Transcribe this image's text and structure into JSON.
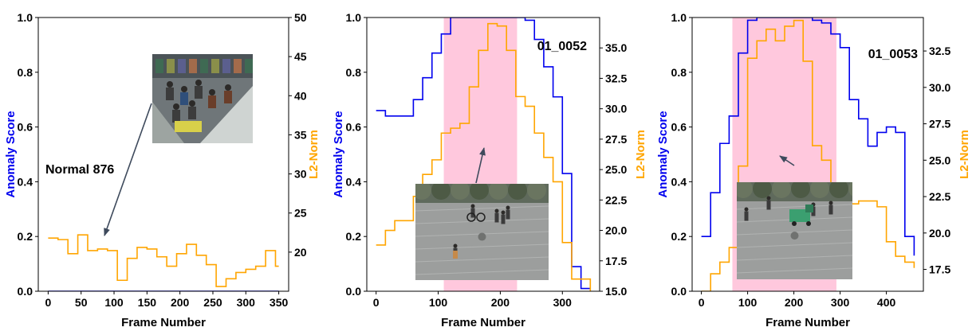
{
  "chart_data": [
    {
      "type": "line",
      "annotation": "Normal 876",
      "xlabel": "Frame Number",
      "ylabel": "Anomaly Score",
      "y2label": "L2-Norm",
      "xlim": [
        -15,
        365
      ],
      "ylim": [
        0,
        1.0
      ],
      "y2lim": [
        15,
        50
      ],
      "xticks": [
        0,
        50,
        100,
        150,
        200,
        250,
        300,
        350
      ],
      "yticks": [
        0.0,
        0.2,
        0.4,
        0.6,
        0.8,
        1.0
      ],
      "y2ticks": [
        20,
        25,
        30,
        35,
        40,
        45,
        50
      ],
      "ytick_labels": [
        "0.0",
        "0.2",
        "0.4",
        "0.6",
        "0.8",
        "1.0"
      ],
      "y2tick_labels": [
        "20",
        "25",
        "30",
        "35",
        "40",
        "45",
        "50"
      ],
      "shade": null,
      "thumbnail": "store-surveillance",
      "series": [
        {
          "axis": "left",
          "color": "#0000ee",
          "x": [
            0,
            350
          ],
          "values": [
            0.0,
            0.0
          ]
        },
        {
          "axis": "right",
          "color": "#ffa500",
          "x": [
            0,
            15,
            30,
            45,
            60,
            75,
            90,
            105,
            120,
            135,
            150,
            165,
            180,
            195,
            210,
            225,
            240,
            255,
            270,
            285,
            300,
            315,
            330,
            345,
            350
          ],
          "values": [
            21.8,
            21.6,
            19.8,
            22.2,
            20.2,
            20.4,
            20.2,
            16.4,
            19.2,
            20.6,
            20.4,
            19.4,
            18.2,
            19.8,
            21.0,
            19.6,
            18.4,
            15.6,
            16.6,
            17.4,
            17.8,
            18.2,
            20.2,
            18.2,
            18.2
          ]
        }
      ]
    },
    {
      "type": "line",
      "annotation": "01_0052",
      "xlabel": "Frame Number",
      "ylabel": "Anomaly Score",
      "y2label": "L2-Norm",
      "xlim": [
        -15,
        360
      ],
      "ylim": [
        0,
        1.0
      ],
      "y2lim": [
        15,
        37.5
      ],
      "xticks": [
        0,
        100,
        200,
        300
      ],
      "yticks": [
        0.0,
        0.2,
        0.4,
        0.6,
        0.8,
        1.0
      ],
      "y2ticks": [
        15,
        17.5,
        20,
        22.5,
        25,
        27.5,
        30,
        32.5,
        35
      ],
      "ytick_labels": [
        "0.0",
        "0.2",
        "0.4",
        "0.6",
        "0.8",
        "1.0"
      ],
      "y2tick_labels": [
        "15.0",
        "17.5",
        "20.0",
        "22.5",
        "25.0",
        "27.5",
        "30.0",
        "32.5",
        "35.0"
      ],
      "shade": [
        109,
        227
      ],
      "thumbnail": "plaza-pedestrians",
      "series": [
        {
          "axis": "left",
          "color": "#0000ee",
          "x": [
            0,
            15,
            30,
            45,
            60,
            75,
            90,
            105,
            120,
            135,
            150,
            165,
            180,
            195,
            210,
            225,
            240,
            255,
            270,
            285,
            300,
            315,
            330,
            345
          ],
          "values": [
            0.66,
            0.64,
            0.64,
            0.64,
            0.7,
            0.78,
            0.87,
            0.94,
            1.0,
            1.0,
            1.0,
            1.0,
            1.0,
            1.0,
            1.0,
            1.0,
            0.99,
            0.92,
            0.82,
            0.71,
            0.43,
            0.09,
            0.01,
            0.01
          ]
        },
        {
          "axis": "right",
          "color": "#ffa500",
          "x": [
            0,
            15,
            30,
            45,
            60,
            75,
            90,
            105,
            120,
            135,
            150,
            165,
            180,
            195,
            210,
            225,
            240,
            255,
            270,
            285,
            300,
            315,
            330,
            345
          ],
          "values": [
            18.8,
            20.0,
            20.8,
            20.8,
            22.8,
            24.6,
            25.8,
            28.0,
            28.4,
            28.8,
            31.8,
            34.8,
            37.0,
            36.8,
            34.8,
            31.0,
            30.2,
            28.0,
            26.0,
            24.0,
            19.0,
            16.0,
            16.0,
            15.0
          ]
        }
      ]
    },
    {
      "type": "line",
      "annotation": "01_0053",
      "xlabel": "Frame Number",
      "ylabel": "Anomaly Score",
      "y2label": "L2-Norm",
      "xlim": [
        -20,
        480
      ],
      "ylim": [
        0,
        1.0
      ],
      "y2lim": [
        16,
        34.8
      ],
      "xticks": [
        0,
        100,
        200,
        300,
        400
      ],
      "yticks": [
        0.0,
        0.2,
        0.4,
        0.6,
        0.8,
        1.0
      ],
      "y2ticks": [
        17.5,
        20,
        22.5,
        25,
        27.5,
        30,
        32.5
      ],
      "ytick_labels": [
        "0.0",
        "0.2",
        "0.4",
        "0.6",
        "0.8",
        "1.0"
      ],
      "y2tick_labels": [
        "17.5",
        "20.0",
        "22.5",
        "25.0",
        "27.5",
        "30.0",
        "32.5"
      ],
      "shade": [
        67,
        292
      ],
      "thumbnail": "plaza-vehicle",
      "series": [
        {
          "axis": "left",
          "color": "#0000ee",
          "x": [
            0,
            20,
            40,
            60,
            80,
            100,
            120,
            140,
            160,
            180,
            200,
            220,
            240,
            260,
            280,
            300,
            320,
            340,
            360,
            380,
            400,
            420,
            440,
            460
          ],
          "values": [
            0.2,
            0.36,
            0.54,
            0.64,
            0.87,
            0.99,
            1.0,
            1.0,
            1.0,
            1.0,
            1.0,
            1.0,
            0.99,
            0.98,
            0.94,
            0.89,
            0.7,
            0.63,
            0.53,
            0.58,
            0.6,
            0.58,
            0.2,
            0.13
          ]
        },
        {
          "axis": "right",
          "color": "#ffa500",
          "x": [
            0,
            20,
            40,
            60,
            80,
            100,
            120,
            140,
            160,
            180,
            200,
            220,
            240,
            260,
            280,
            300,
            320,
            340,
            360,
            380,
            400,
            420,
            440,
            460
          ],
          "values": [
            16.0,
            17.2,
            18.0,
            19.0,
            24.6,
            32.0,
            33.2,
            34.0,
            33.2,
            34.2,
            34.6,
            31.8,
            26.0,
            25.0,
            22.0,
            21.0,
            22.0,
            22.2,
            22.2,
            21.8,
            19.4,
            18.4,
            18.0,
            17.6
          ]
        }
      ]
    }
  ]
}
